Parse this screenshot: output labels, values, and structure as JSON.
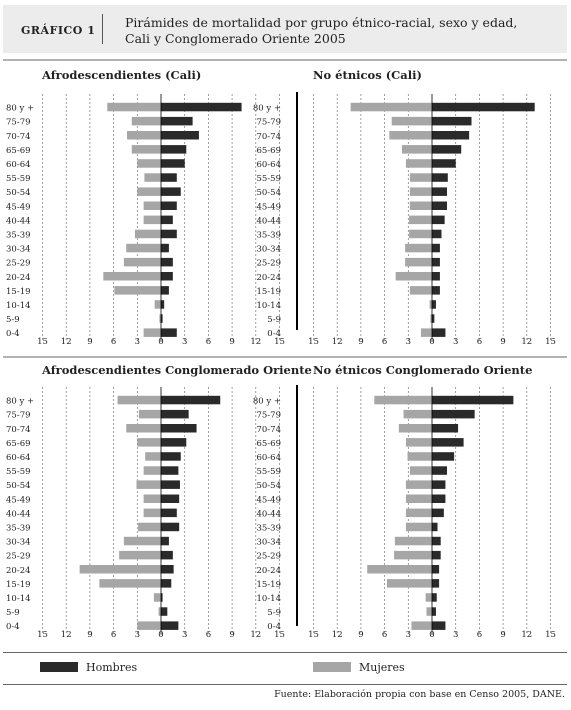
{
  "header": {
    "label": "GRÁFICO 1",
    "title": "Pirámides de mortalidad por grupo étnico-racial, sexo y edad, Cali y Conglomerado Oriente 2005"
  },
  "colors": {
    "hombres": "#2a2a2a",
    "mujeres": "#a6a6a6",
    "grid": "#777777",
    "axis": "#000000"
  },
  "chart_data": [
    {
      "type": "bar",
      "title": "Afrodescendientes (Cali)",
      "categories": [
        "80 y +",
        "75-79",
        "70-74",
        "65-69",
        "60-64",
        "55-59",
        "50-54",
        "45-49",
        "40-44",
        "35-39",
        "30-34",
        "25-29",
        "20-24",
        "15-19",
        "10-14",
        "5-9",
        "0-4"
      ],
      "series": [
        {
          "name": "Hombres",
          "values": [
            10.2,
            4.0,
            4.8,
            3.2,
            3.0,
            2.0,
            2.5,
            2.0,
            1.5,
            2.0,
            1.0,
            1.5,
            1.5,
            1.0,
            0.4,
            0.2,
            2.0
          ]
        },
        {
          "name": "Mujeres",
          "values": [
            6.8,
            3.7,
            4.3,
            3.7,
            3.0,
            2.1,
            3.0,
            2.2,
            2.2,
            3.3,
            4.4,
            4.7,
            7.3,
            5.9,
            0.8,
            0.2,
            2.2
          ]
        }
      ],
      "xlim": [
        -15,
        15
      ],
      "ticks": [
        "15",
        "12",
        "9",
        "6",
        "3",
        "0",
        "3",
        "6",
        "9",
        "12",
        "15"
      ]
    },
    {
      "type": "bar",
      "title": "No étnicos (Cali)",
      "categories": [
        "80 y +",
        "75-79",
        "70-74",
        "65-69",
        "60-64",
        "55-59",
        "50-54",
        "45-49",
        "40-44",
        "35-39",
        "30-34",
        "25-29",
        "20-24",
        "15-19",
        "10-14",
        "5-9",
        "0-4"
      ],
      "series": [
        {
          "name": "Hombres",
          "values": [
            13.0,
            5.0,
            4.7,
            3.7,
            3.0,
            2.0,
            1.9,
            1.9,
            1.6,
            1.2,
            1.0,
            1.0,
            1.0,
            1.0,
            0.5,
            0.3,
            1.7
          ]
        },
        {
          "name": "Mujeres",
          "values": [
            10.3,
            5.1,
            5.4,
            3.8,
            3.3,
            2.8,
            2.8,
            2.8,
            2.9,
            2.9,
            3.4,
            3.4,
            4.6,
            2.8,
            0.3,
            0.2,
            1.4
          ]
        }
      ],
      "xlim": [
        -15,
        15
      ],
      "ticks": [
        "15",
        "12",
        "9",
        "6",
        "3",
        "0",
        "3",
        "6",
        "9",
        "12",
        "15"
      ]
    },
    {
      "type": "bar",
      "title": "Afrodescendientes Conglomerado Oriente",
      "categories": [
        "80 y +",
        "75-79",
        "70-74",
        "65-69",
        "60-64",
        "55-59",
        "50-54",
        "45-49",
        "40-44",
        "35-39",
        "30-34",
        "25-29",
        "20-24",
        "15-19",
        "10-14",
        "5-9",
        "0-4"
      ],
      "series": [
        {
          "name": "Hombres",
          "values": [
            7.5,
            3.5,
            4.5,
            3.2,
            2.5,
            2.2,
            2.4,
            2.3,
            2.0,
            2.3,
            1.0,
            1.5,
            1.6,
            1.3,
            0.2,
            0.8,
            2.2
          ]
        },
        {
          "name": "Mujeres",
          "values": [
            5.5,
            2.8,
            4.4,
            3.0,
            2.0,
            2.2,
            3.1,
            2.2,
            2.2,
            2.9,
            4.7,
            5.3,
            10.3,
            7.8,
            0.9,
            0.3,
            3.0
          ]
        }
      ],
      "xlim": [
        -15,
        15
      ],
      "ticks": [
        "15",
        "12",
        "9",
        "6",
        "3",
        "0",
        "3",
        "6",
        "9",
        "12",
        "15"
      ]
    },
    {
      "type": "bar",
      "title": "No étnicos Conglomerado Oriente",
      "categories": [
        "80 y +",
        "75-79",
        "70-74",
        "65-69",
        "60-64",
        "55-59",
        "50-54",
        "45-49",
        "40-44",
        "35-39",
        "30-34",
        "25-29",
        "20-24",
        "15-19",
        "10-14",
        "5-9",
        "0-4"
      ],
      "series": [
        {
          "name": "Hombres",
          "values": [
            10.3,
            5.4,
            3.3,
            4.0,
            2.8,
            1.9,
            1.7,
            1.7,
            1.5,
            0.7,
            1.1,
            1.1,
            0.9,
            0.9,
            0.6,
            0.5,
            1.7
          ]
        },
        {
          "name": "Mujeres",
          "values": [
            7.3,
            3.6,
            4.2,
            3.3,
            3.1,
            2.8,
            3.3,
            3.3,
            3.3,
            3.3,
            4.7,
            4.8,
            8.2,
            5.7,
            0.8,
            0.7,
            2.6
          ]
        }
      ],
      "xlim": [
        -15,
        15
      ],
      "ticks": [
        "15",
        "12",
        "9",
        "6",
        "3",
        "0",
        "3",
        "6",
        "9",
        "12",
        "15"
      ]
    }
  ],
  "legend": {
    "hombres": "Hombres",
    "mujeres": "Mujeres"
  },
  "source": "Fuente: Elaboración propia con base en Censo 2005, DANE."
}
